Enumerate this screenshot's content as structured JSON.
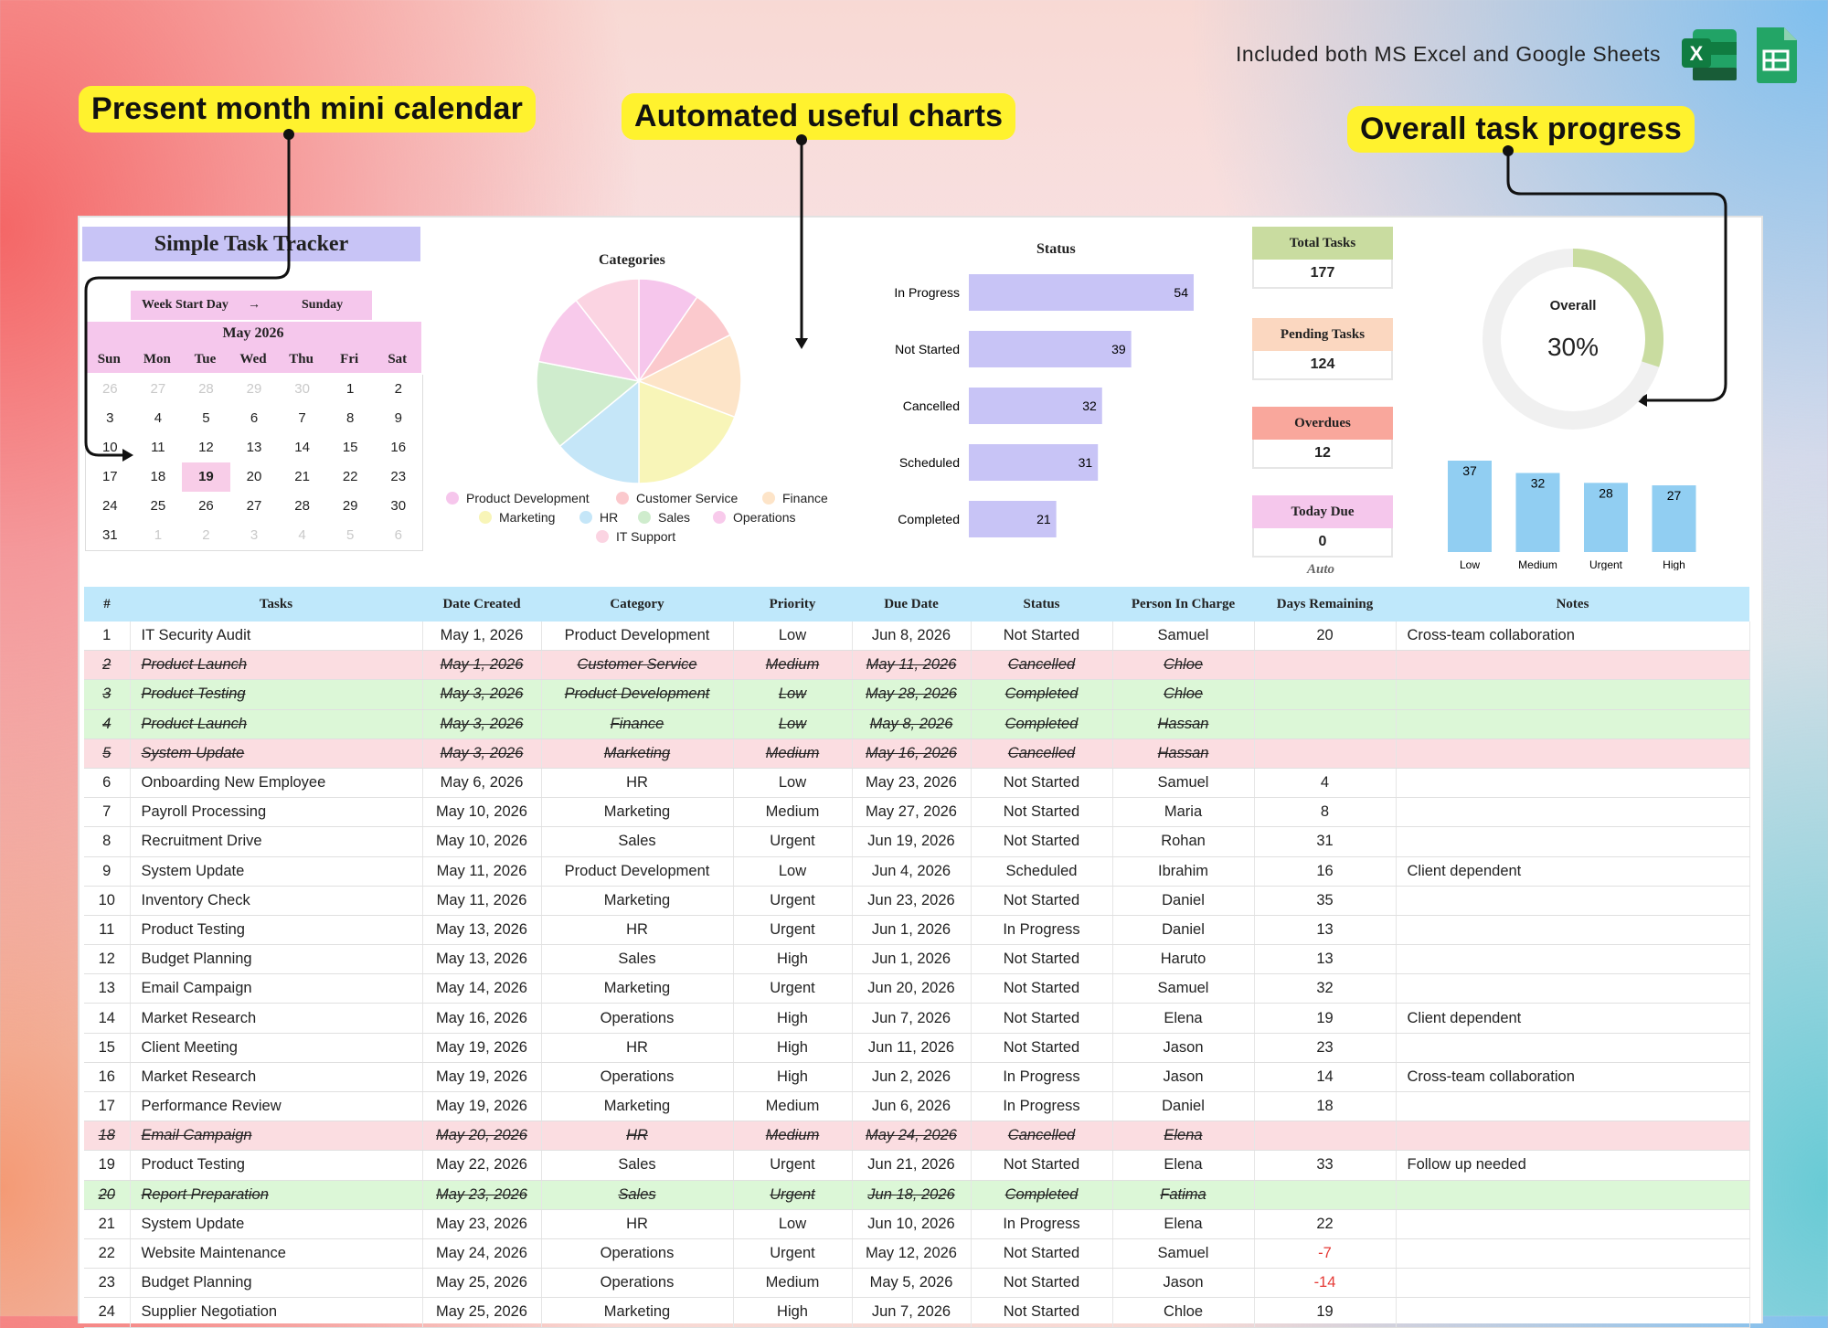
{
  "callouts": {
    "calendar": "Present month mini calendar",
    "charts": "Automated useful charts",
    "progress": "Overall task progress"
  },
  "top_note": "Included both MS Excel and Google Sheets",
  "logos": {
    "excel": "excel-logo",
    "sheets": "google-sheets-logo",
    "excel_letter": "X"
  },
  "tracker_title": "Simple Task Tracker",
  "calendar": {
    "week_start_label": "Week Start Day",
    "arrow": "→",
    "week_start_value": "Sunday",
    "month": "May 2026",
    "days": [
      "Sun",
      "Mon",
      "Tue",
      "Wed",
      "Thu",
      "Fri",
      "Sat"
    ],
    "weeks": [
      [
        "26",
        "27",
        "28",
        "29",
        "30",
        "1",
        "2"
      ],
      [
        "3",
        "4",
        "5",
        "6",
        "7",
        "8",
        "9"
      ],
      [
        "10",
        "11",
        "12",
        "13",
        "14",
        "15",
        "16"
      ],
      [
        "17",
        "18",
        "19",
        "20",
        "21",
        "22",
        "23"
      ],
      [
        "24",
        "25",
        "26",
        "27",
        "28",
        "29",
        "30"
      ],
      [
        "31",
        "1",
        "2",
        "3",
        "4",
        "5",
        "6"
      ]
    ],
    "today": "19"
  },
  "chart_data": [
    {
      "type": "pie",
      "title": "Categories",
      "labels": [
        "Product Development",
        "Customer Service",
        "Finance",
        "Marketing",
        "HR",
        "Sales",
        "Operations",
        "IT Support"
      ],
      "values": [
        11,
        9,
        15,
        22,
        16,
        16,
        13,
        12
      ],
      "colors": [
        "#f6c6ec",
        "#fbc9cd",
        "#fde4c8",
        "#f8f5b8",
        "#c5e6f8",
        "#cfeccd",
        "#f8caeb",
        "#fbd4e2"
      ]
    },
    {
      "type": "bar",
      "title": "Status",
      "orientation": "horizontal",
      "categories": [
        "In Progress",
        "Not Started",
        "Cancelled",
        "Scheduled",
        "Completed"
      ],
      "values": [
        54,
        39,
        32,
        31,
        21
      ],
      "color": "#c8c4f6"
    },
    {
      "type": "pie",
      "subtype": "donut",
      "title": "Overall",
      "values": [
        30,
        70
      ],
      "label": "30%",
      "colors": [
        "#c9dca0",
        "#f0f0f0"
      ]
    },
    {
      "type": "bar",
      "categories": [
        "Low",
        "Medium",
        "Urgent",
        "High"
      ],
      "values": [
        37,
        32,
        28,
        27
      ],
      "color": "#91cef2"
    }
  ],
  "kpis": [
    {
      "label": "Total Tasks",
      "value": "177",
      "color": "#c9dca0"
    },
    {
      "label": "Pending Tasks",
      "value": "124",
      "color": "#fbd7c0"
    },
    {
      "label": "Overdues",
      "value": "12",
      "color": "#f9a79c"
    },
    {
      "label": "Today Due",
      "value": "0",
      "color": "#f5c7ec"
    }
  ],
  "auto_label": "Auto",
  "table": {
    "headers": [
      "#",
      "Tasks",
      "Date Created",
      "Category",
      "Priority",
      "Due Date",
      "Status",
      "Person In Charge",
      "Days Remaining",
      "Notes"
    ],
    "rows": [
      [
        "1",
        "IT Security Audit",
        "May 1, 2026",
        "Product Development",
        "Low",
        "Jun 8, 2026",
        "Not Started",
        "Samuel",
        "20",
        "Cross-team collaboration"
      ],
      [
        "2",
        "Product Launch",
        "May 1, 2026",
        "Customer Service",
        "Medium",
        "May 11, 2026",
        "Cancelled",
        "Chloe",
        "",
        ""
      ],
      [
        "3",
        "Product Testing",
        "May 3, 2026",
        "Product Development",
        "Low",
        "May 28, 2026",
        "Completed",
        "Chloe",
        "",
        ""
      ],
      [
        "4",
        "Product Launch",
        "May 3, 2026",
        "Finance",
        "Low",
        "May 8, 2026",
        "Completed",
        "Hassan",
        "",
        ""
      ],
      [
        "5",
        "System Update",
        "May 3, 2026",
        "Marketing",
        "Medium",
        "May 16, 2026",
        "Cancelled",
        "Hassan",
        "",
        ""
      ],
      [
        "6",
        "Onboarding New Employee",
        "May 6, 2026",
        "HR",
        "Low",
        "May 23, 2026",
        "Not Started",
        "Samuel",
        "4",
        ""
      ],
      [
        "7",
        "Payroll Processing",
        "May 10, 2026",
        "Marketing",
        "Medium",
        "May 27, 2026",
        "Not Started",
        "Maria",
        "8",
        ""
      ],
      [
        "8",
        "Recruitment Drive",
        "May 10, 2026",
        "Sales",
        "Urgent",
        "Jun 19, 2026",
        "Not Started",
        "Rohan",
        "31",
        ""
      ],
      [
        "9",
        "System Update",
        "May 11, 2026",
        "Product Development",
        "Low",
        "Jun 4, 2026",
        "Scheduled",
        "Ibrahim",
        "16",
        "Client dependent"
      ],
      [
        "10",
        "Inventory Check",
        "May 11, 2026",
        "Marketing",
        "Urgent",
        "Jun 23, 2026",
        "Not Started",
        "Daniel",
        "35",
        ""
      ],
      [
        "11",
        "Product Testing",
        "May 13, 2026",
        "HR",
        "Urgent",
        "Jun 1, 2026",
        "In Progress",
        "Daniel",
        "13",
        ""
      ],
      [
        "12",
        "Budget Planning",
        "May 13, 2026",
        "Sales",
        "High",
        "Jun 1, 2026",
        "Not Started",
        "Haruto",
        "13",
        ""
      ],
      [
        "13",
        "Email Campaign",
        "May 14, 2026",
        "Marketing",
        "Urgent",
        "Jun 20, 2026",
        "Not Started",
        "Samuel",
        "32",
        ""
      ],
      [
        "14",
        "Market Research",
        "May 16, 2026",
        "Operations",
        "High",
        "Jun 7, 2026",
        "Not Started",
        "Elena",
        "19",
        "Client dependent"
      ],
      [
        "15",
        "Client Meeting",
        "May 19, 2026",
        "HR",
        "High",
        "Jun 11, 2026",
        "Not Started",
        "Jason",
        "23",
        ""
      ],
      [
        "16",
        "Market Research",
        "May 19, 2026",
        "Operations",
        "High",
        "Jun 2, 2026",
        "In Progress",
        "Jason",
        "14",
        "Cross-team collaboration"
      ],
      [
        "17",
        "Performance Review",
        "May 19, 2026",
        "Marketing",
        "Medium",
        "Jun 6, 2026",
        "In Progress",
        "Daniel",
        "18",
        ""
      ],
      [
        "18",
        "Email Campaign",
        "May 20, 2026",
        "HR",
        "Medium",
        "May 24, 2026",
        "Cancelled",
        "Elena",
        "",
        ""
      ],
      [
        "19",
        "Product Testing",
        "May 22, 2026",
        "Sales",
        "Urgent",
        "Jun 21, 2026",
        "Not Started",
        "Elena",
        "33",
        "Follow up needed"
      ],
      [
        "20",
        "Report Preparation",
        "May 23, 2026",
        "Sales",
        "Urgent",
        "Jun 18, 2026",
        "Completed",
        "Fatima",
        "",
        ""
      ],
      [
        "21",
        "System Update",
        "May 23, 2026",
        "HR",
        "Low",
        "Jun 10, 2026",
        "In Progress",
        "Elena",
        "22",
        ""
      ],
      [
        "22",
        "Website Maintenance",
        "May 24, 2026",
        "Operations",
        "Urgent",
        "May 12, 2026",
        "Not Started",
        "Samuel",
        "-7",
        ""
      ],
      [
        "23",
        "Budget Planning",
        "May 25, 2026",
        "Operations",
        "Medium",
        "May 5, 2026",
        "Not Started",
        "Jason",
        "-14",
        ""
      ],
      [
        "24",
        "Supplier Negotiation",
        "May 25, 2026",
        "Marketing",
        "High",
        "Jun 7, 2026",
        "Not Started",
        "Chloe",
        "19",
        ""
      ]
    ]
  }
}
